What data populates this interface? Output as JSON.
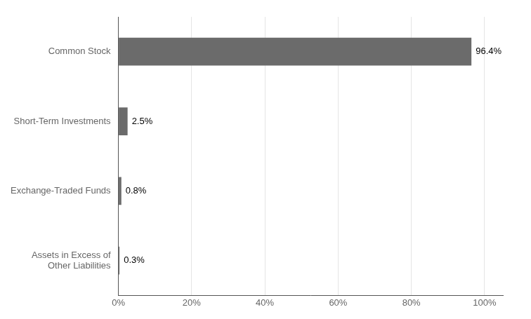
{
  "chart_data": {
    "type": "bar",
    "orientation": "horizontal",
    "categories": [
      "Assets in Excess of\nOther Liabilities",
      "Exchange-Traded Funds",
      "Short-Term Investments",
      "Common Stock"
    ],
    "values": [
      0.3,
      0.8,
      2.5,
      96.4
    ],
    "value_labels": [
      "0.3%",
      "0.8%",
      "2.5%",
      "96.4%"
    ],
    "data_labels": true,
    "color": "#6b6b6b",
    "xlim": [
      0,
      105
    ],
    "xticks": [
      {
        "value": 0,
        "label": "0%"
      },
      {
        "value": 20,
        "label": "20%"
      },
      {
        "value": 40,
        "label": "40%"
      },
      {
        "value": 60,
        "label": "60%"
      },
      {
        "value": 80,
        "label": "80%"
      },
      {
        "value": 100,
        "label": "100%"
      }
    ],
    "grid": true
  }
}
